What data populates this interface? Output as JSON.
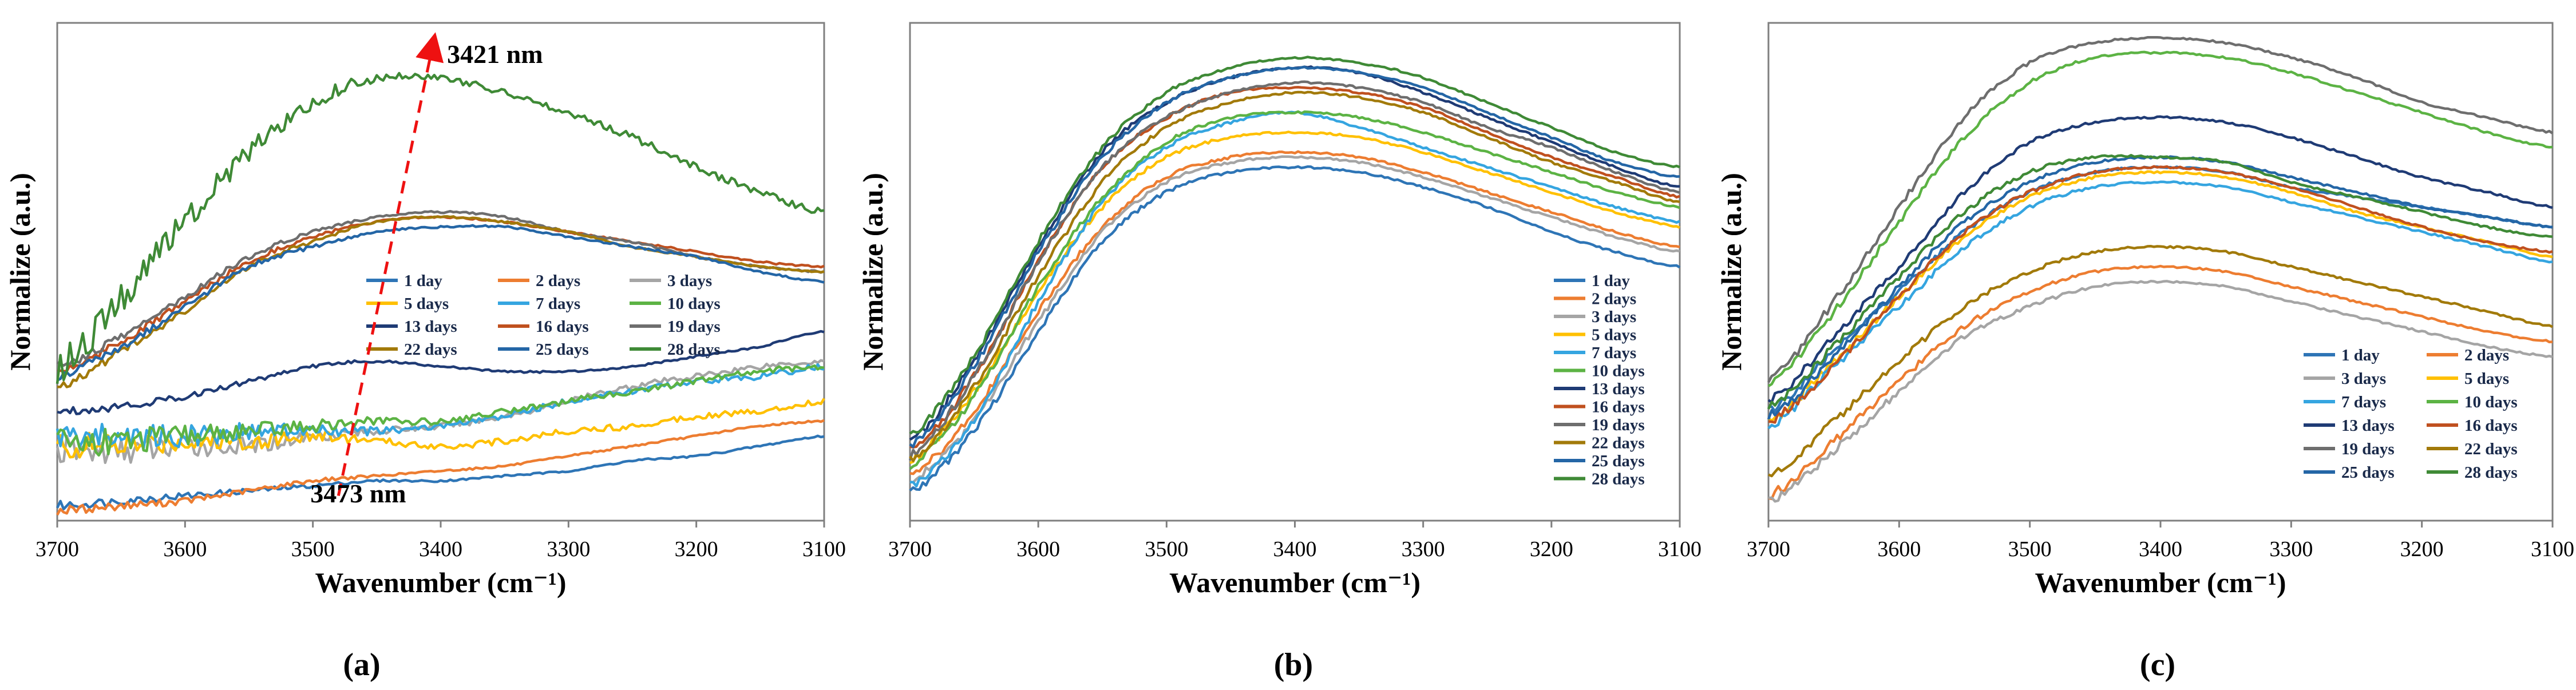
{
  "colors": {
    "1 day": "#2e75b6",
    "2 days": "#ed7d31",
    "3 days": "#a5a5a5",
    "5 days": "#ffc000",
    "7 days": "#35a5e0",
    "10 days": "#5cb344",
    "13 days": "#1f3b75",
    "16 days": "#c0501f",
    "19 days": "#6e6e6e",
    "22 days": "#a27a0a",
    "25 days": "#2466a6",
    "28 days": "#3f8a36",
    "annotation": "#ee1111"
  },
  "chart_data": [
    {
      "type": "line",
      "panel_label": "(a)",
      "xlabel": "Wavenumber (cm⁻¹)",
      "ylabel": "Normalize (a.u.)",
      "xlim": [
        3700,
        3100
      ],
      "ylim": [
        0,
        1
      ],
      "xticks": [
        "3700",
        "3600",
        "3500",
        "3400",
        "3300",
        "3200",
        "3100"
      ],
      "legend_position": "center-right",
      "legend_columns": 3,
      "annotations": [
        "3421 nm",
        "3473 nm"
      ],
      "arrow": {
        "from": [
          3480,
          0.05
        ],
        "to": [
          3405,
          0.97
        ]
      },
      "x": [
        3700,
        3650,
        3600,
        3550,
        3500,
        3450,
        3400,
        3350,
        3300,
        3250,
        3200,
        3150,
        3100
      ],
      "series": [
        {
          "name": "1 day",
          "values": [
            0.03,
            0.04,
            0.05,
            0.06,
            0.07,
            0.08,
            0.08,
            0.09,
            0.1,
            0.12,
            0.13,
            0.15,
            0.17
          ]
        },
        {
          "name": "2 days",
          "values": [
            0.02,
            0.03,
            0.04,
            0.06,
            0.08,
            0.09,
            0.1,
            0.11,
            0.13,
            0.15,
            0.17,
            0.19,
            0.2
          ]
        },
        {
          "name": "3 days",
          "values": [
            0.14,
            0.14,
            0.15,
            0.15,
            0.17,
            0.18,
            0.19,
            0.21,
            0.24,
            0.27,
            0.29,
            0.31,
            0.32
          ]
        },
        {
          "name": "5 days",
          "values": [
            0.15,
            0.15,
            0.16,
            0.16,
            0.17,
            0.16,
            0.15,
            0.16,
            0.18,
            0.19,
            0.21,
            0.22,
            0.24
          ]
        },
        {
          "name": "7 days",
          "values": [
            0.17,
            0.17,
            0.17,
            0.18,
            0.18,
            0.18,
            0.19,
            0.21,
            0.24,
            0.26,
            0.28,
            0.29,
            0.31
          ]
        },
        {
          "name": "10 days",
          "values": [
            0.16,
            0.16,
            0.17,
            0.18,
            0.19,
            0.2,
            0.2,
            0.22,
            0.24,
            0.26,
            0.28,
            0.3,
            0.31
          ]
        },
        {
          "name": "13 days",
          "values": [
            0.22,
            0.23,
            0.25,
            0.28,
            0.31,
            0.32,
            0.31,
            0.3,
            0.3,
            0.31,
            0.33,
            0.35,
            0.38
          ]
        },
        {
          "name": "16 days",
          "values": [
            0.3,
            0.36,
            0.44,
            0.52,
            0.57,
            0.6,
            0.61,
            0.6,
            0.58,
            0.56,
            0.54,
            0.52,
            0.51
          ]
        },
        {
          "name": "19 days",
          "values": [
            0.31,
            0.37,
            0.45,
            0.53,
            0.58,
            0.61,
            0.62,
            0.61,
            0.58,
            0.56,
            0.53,
            0.51,
            0.5
          ]
        },
        {
          "name": "22 days",
          "values": [
            0.27,
            0.34,
            0.42,
            0.51,
            0.56,
            0.6,
            0.61,
            0.6,
            0.58,
            0.55,
            0.53,
            0.51,
            0.5
          ]
        },
        {
          "name": "25 days",
          "values": [
            0.29,
            0.35,
            0.43,
            0.51,
            0.55,
            0.58,
            0.59,
            0.59,
            0.57,
            0.55,
            0.53,
            0.5,
            0.48
          ]
        },
        {
          "name": "28 days",
          "values": [
            0.31,
            0.45,
            0.6,
            0.74,
            0.84,
            0.89,
            0.89,
            0.86,
            0.82,
            0.77,
            0.71,
            0.66,
            0.62
          ]
        }
      ]
    },
    {
      "type": "line",
      "panel_label": "(b)",
      "xlabel": "Wavenumber (cm⁻¹)",
      "ylabel": "Normalize (a.u.)",
      "xlim": [
        3700,
        3100
      ],
      "ylim": [
        0,
        1
      ],
      "xticks": [
        "3700",
        "3600",
        "3500",
        "3400",
        "3300",
        "3200",
        "3100"
      ],
      "legend_position": "right",
      "legend_columns": 1,
      "x": [
        3700,
        3650,
        3600,
        3550,
        3500,
        3450,
        3400,
        3350,
        3300,
        3250,
        3200,
        3150,
        3100
      ],
      "series": [
        {
          "name": "1 day",
          "values": [
            0.06,
            0.18,
            0.38,
            0.56,
            0.66,
            0.7,
            0.71,
            0.7,
            0.67,
            0.63,
            0.58,
            0.54,
            0.51
          ]
        },
        {
          "name": "2 days",
          "values": [
            0.09,
            0.22,
            0.42,
            0.59,
            0.69,
            0.73,
            0.74,
            0.73,
            0.7,
            0.66,
            0.62,
            0.58,
            0.55
          ]
        },
        {
          "name": "3 days",
          "values": [
            0.08,
            0.2,
            0.4,
            0.58,
            0.68,
            0.72,
            0.73,
            0.72,
            0.69,
            0.65,
            0.61,
            0.57,
            0.54
          ]
        },
        {
          "name": "5 days",
          "values": [
            0.12,
            0.26,
            0.46,
            0.63,
            0.73,
            0.77,
            0.78,
            0.77,
            0.74,
            0.7,
            0.66,
            0.62,
            0.59
          ]
        },
        {
          "name": "7 days",
          "values": [
            0.07,
            0.2,
            0.44,
            0.64,
            0.75,
            0.8,
            0.82,
            0.79,
            0.75,
            0.71,
            0.67,
            0.63,
            0.6
          ]
        },
        {
          "name": "10 days",
          "values": [
            0.11,
            0.25,
            0.47,
            0.65,
            0.76,
            0.81,
            0.82,
            0.81,
            0.78,
            0.74,
            0.7,
            0.66,
            0.63
          ]
        },
        {
          "name": "13 days",
          "values": [
            0.16,
            0.32,
            0.55,
            0.74,
            0.84,
            0.89,
            0.91,
            0.9,
            0.86,
            0.81,
            0.76,
            0.71,
            0.67
          ]
        },
        {
          "name": "16 days",
          "values": [
            0.14,
            0.29,
            0.52,
            0.71,
            0.81,
            0.86,
            0.87,
            0.86,
            0.83,
            0.78,
            0.73,
            0.69,
            0.65
          ]
        },
        {
          "name": "19 days",
          "values": [
            0.13,
            0.29,
            0.52,
            0.71,
            0.81,
            0.86,
            0.88,
            0.87,
            0.84,
            0.79,
            0.75,
            0.7,
            0.66
          ]
        },
        {
          "name": "22 days",
          "values": [
            0.12,
            0.27,
            0.49,
            0.68,
            0.79,
            0.84,
            0.86,
            0.85,
            0.82,
            0.77,
            0.72,
            0.68,
            0.64
          ]
        },
        {
          "name": "25 days",
          "values": [
            0.15,
            0.31,
            0.54,
            0.73,
            0.84,
            0.89,
            0.91,
            0.9,
            0.87,
            0.82,
            0.77,
            0.72,
            0.69
          ]
        },
        {
          "name": "28 days",
          "values": [
            0.17,
            0.33,
            0.56,
            0.75,
            0.86,
            0.91,
            0.93,
            0.92,
            0.89,
            0.84,
            0.79,
            0.74,
            0.71
          ]
        }
      ]
    },
    {
      "type": "line",
      "panel_label": "(c)",
      "xlabel": "Wavenumber (cm⁻¹)",
      "ylabel": "Normalize (a.u.)",
      "xlim": [
        3700,
        3100
      ],
      "ylim": [
        0,
        1
      ],
      "xticks": [
        "3700",
        "3600",
        "3500",
        "3400",
        "3300",
        "3200",
        "3100"
      ],
      "legend_position": "bottom-right",
      "legend_columns": 2,
      "x": [
        3700,
        3650,
        3600,
        3550,
        3500,
        3450,
        3400,
        3350,
        3300,
        3250,
        3200,
        3150,
        3100
      ],
      "series": [
        {
          "name": "1 day",
          "values": [
            0.22,
            0.34,
            0.46,
            0.58,
            0.66,
            0.7,
            0.71,
            0.7,
            0.67,
            0.65,
            0.63,
            0.61,
            0.59
          ]
        },
        {
          "name": "2 days",
          "values": [
            0.05,
            0.16,
            0.28,
            0.39,
            0.46,
            0.5,
            0.51,
            0.5,
            0.47,
            0.44,
            0.41,
            0.38,
            0.36
          ]
        },
        {
          "name": "3 days",
          "values": [
            0.04,
            0.14,
            0.26,
            0.37,
            0.43,
            0.47,
            0.48,
            0.47,
            0.44,
            0.41,
            0.38,
            0.35,
            0.33
          ]
        },
        {
          "name": "5 days",
          "values": [
            0.2,
            0.32,
            0.45,
            0.57,
            0.65,
            0.69,
            0.7,
            0.69,
            0.66,
            0.62,
            0.59,
            0.56,
            0.53
          ]
        },
        {
          "name": "7 days",
          "values": [
            0.19,
            0.31,
            0.43,
            0.55,
            0.63,
            0.67,
            0.68,
            0.67,
            0.64,
            0.61,
            0.58,
            0.55,
            0.52
          ]
        },
        {
          "name": "10 days",
          "values": [
            0.27,
            0.42,
            0.6,
            0.77,
            0.88,
            0.93,
            0.94,
            0.93,
            0.9,
            0.86,
            0.82,
            0.78,
            0.75
          ]
        },
        {
          "name": "13 days",
          "values": [
            0.24,
            0.37,
            0.51,
            0.66,
            0.76,
            0.8,
            0.81,
            0.8,
            0.77,
            0.73,
            0.69,
            0.66,
            0.63
          ]
        },
        {
          "name": "16 days",
          "values": [
            0.2,
            0.31,
            0.45,
            0.58,
            0.66,
            0.7,
            0.71,
            0.7,
            0.67,
            0.63,
            0.59,
            0.56,
            0.54
          ]
        },
        {
          "name": "19 days",
          "values": [
            0.28,
            0.44,
            0.63,
            0.81,
            0.92,
            0.96,
            0.97,
            0.96,
            0.93,
            0.89,
            0.84,
            0.81,
            0.78
          ]
        },
        {
          "name": "22 days",
          "values": [
            0.09,
            0.2,
            0.32,
            0.43,
            0.5,
            0.54,
            0.55,
            0.54,
            0.51,
            0.48,
            0.45,
            0.42,
            0.39
          ]
        },
        {
          "name": "25 days",
          "values": [
            0.21,
            0.33,
            0.47,
            0.6,
            0.68,
            0.72,
            0.73,
            0.72,
            0.69,
            0.66,
            0.63,
            0.61,
            0.59
          ]
        },
        {
          "name": "28 days",
          "values": [
            0.23,
            0.35,
            0.49,
            0.62,
            0.7,
            0.73,
            0.73,
            0.72,
            0.68,
            0.65,
            0.62,
            0.59,
            0.57
          ]
        }
      ]
    }
  ]
}
